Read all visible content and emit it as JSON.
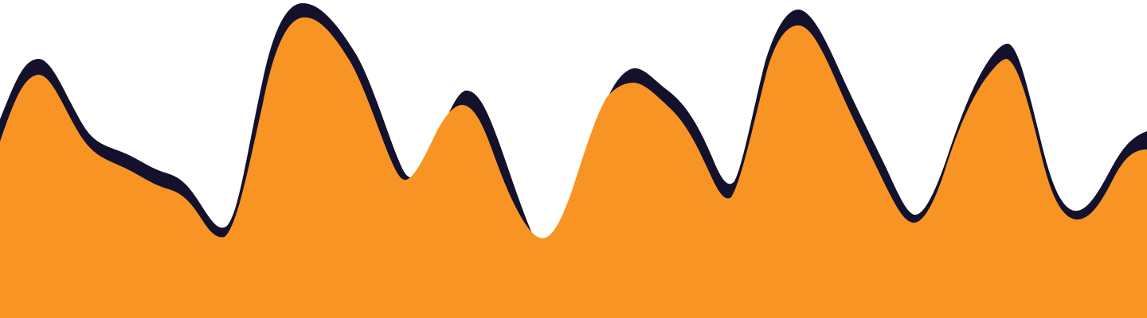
{
  "colors": {
    "background": "#ffffff",
    "shadow_wave": "#14112d",
    "main_wave": "#f79424"
  }
}
